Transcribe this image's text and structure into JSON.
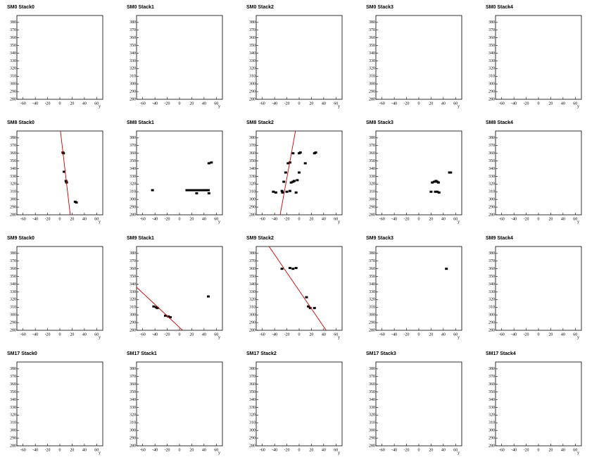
{
  "chart_data": [
    {
      "type": "scatter",
      "title": "SM0 Stack0",
      "xlabel": "y",
      "x": [],
      "values": [],
      "color": "#000000",
      "xlim": [
        -70,
        70
      ],
      "ylim": [
        280,
        389
      ],
      "xticks": [
        -60,
        -40,
        -20,
        0,
        20,
        40,
        60
      ],
      "yticks": [
        280,
        290,
        300,
        310,
        320,
        330,
        340,
        350,
        360,
        370,
        380
      ]
    },
    {
      "type": "scatter",
      "title": "SM0 Stack1",
      "xlabel": "y",
      "x": [],
      "values": [],
      "color": "#000000",
      "xlim": [
        -70,
        70
      ],
      "ylim": [
        280,
        389
      ],
      "xticks": [
        -60,
        -40,
        -20,
        0,
        20,
        40,
        60
      ],
      "yticks": [
        280,
        290,
        300,
        310,
        320,
        330,
        340,
        350,
        360,
        370,
        380
      ]
    },
    {
      "type": "scatter",
      "title": "SM0 Stack2",
      "xlabel": "y",
      "x": [],
      "values": [],
      "color": "#000000",
      "xlim": [
        -70,
        70
      ],
      "ylim": [
        280,
        389
      ],
      "xticks": [
        -60,
        -40,
        -20,
        0,
        20,
        40,
        60
      ],
      "yticks": [
        280,
        290,
        300,
        310,
        320,
        330,
        340,
        350,
        360,
        370,
        380
      ]
    },
    {
      "type": "scatter",
      "title": "SM0 Stack3",
      "xlabel": "y",
      "x": [],
      "values": [],
      "color": "#000000",
      "xlim": [
        -70,
        70
      ],
      "ylim": [
        280,
        389
      ],
      "xticks": [
        -60,
        -40,
        -20,
        0,
        20,
        40,
        60
      ],
      "yticks": [
        280,
        290,
        300,
        310,
        320,
        330,
        340,
        350,
        360,
        370,
        380
      ]
    },
    {
      "type": "scatter",
      "title": "SM0 Stack4",
      "xlabel": "y",
      "x": [],
      "values": [],
      "color": "#000000",
      "xlim": [
        -70,
        70
      ],
      "ylim": [
        280,
        389
      ],
      "xticks": [
        -60,
        -40,
        -20,
        0,
        20,
        40,
        60
      ],
      "yticks": [
        280,
        290,
        300,
        310,
        320,
        330,
        340,
        350,
        360,
        370,
        380
      ]
    },
    {
      "type": "scatter",
      "title": "SM8 Stack0",
      "xlabel": "y",
      "x": [
        5,
        6,
        7,
        10,
        11,
        25,
        27
      ],
      "values": [
        361,
        360,
        336,
        324,
        322,
        297,
        296
      ],
      "color": "#000000",
      "fit": {
        "x": [
          1,
          17
        ],
        "y": [
          389,
          280
        ],
        "color": "#cc0000"
      },
      "xlim": [
        -70,
        70
      ],
      "ylim": [
        280,
        389
      ],
      "xticks": [
        -60,
        -40,
        -20,
        0,
        20,
        40,
        60
      ],
      "yticks": [
        280,
        290,
        300,
        310,
        320,
        330,
        340,
        350,
        360,
        370,
        380
      ]
    },
    {
      "type": "scatter",
      "title": "SM8 Stack1",
      "xlabel": "y",
      "x": [
        -44,
        12,
        16,
        20,
        24,
        28,
        32,
        36,
        40,
        44,
        47,
        28,
        48,
        48,
        52
      ],
      "values": [
        312,
        312,
        312,
        312,
        312,
        312,
        312,
        312,
        312,
        312,
        312,
        308,
        308,
        347,
        348
      ],
      "color": "#000000",
      "xlim": [
        -70,
        70
      ],
      "ylim": [
        280,
        389
      ],
      "xticks": [
        -60,
        -40,
        -20,
        0,
        20,
        40,
        60
      ],
      "yticks": [
        280,
        290,
        300,
        310,
        320,
        330,
        340,
        350,
        360,
        370,
        380
      ]
    },
    {
      "type": "scatter",
      "title": "SM8 Stack2",
      "xlabel": "y",
      "x": [
        -42,
        -38,
        -28,
        -27,
        -25,
        -22,
        -20,
        -15,
        -13,
        -10,
        -8,
        -5,
        -3,
        0,
        -18,
        -15,
        -10,
        0,
        2,
        10,
        25,
        27
      ],
      "values": [
        310,
        309,
        311,
        309,
        323,
        335,
        310,
        311,
        322,
        323,
        324,
        309,
        325,
        335,
        347,
        348,
        360,
        360,
        361,
        347,
        360,
        361
      ],
      "color": "#000000",
      "fit": {
        "x": [
          -31,
          -6
        ],
        "y": [
          280,
          389
        ],
        "color": "#cc0000"
      },
      "xlim": [
        -70,
        70
      ],
      "ylim": [
        280,
        389
      ],
      "xticks": [
        -60,
        -40,
        -20,
        0,
        20,
        40,
        60
      ],
      "yticks": [
        280,
        290,
        300,
        310,
        320,
        330,
        340,
        350,
        360,
        370,
        380
      ]
    },
    {
      "type": "scatter",
      "title": "SM8 Stack3",
      "xlabel": "y",
      "x": [
        20,
        22,
        25,
        28,
        30,
        32,
        27,
        30,
        33,
        50,
        52
      ],
      "values": [
        310,
        322,
        323,
        324,
        323,
        322,
        310,
        310,
        309,
        335,
        335
      ],
      "color": "#000000",
      "xlim": [
        -70,
        70
      ],
      "ylim": [
        280,
        389
      ],
      "xticks": [
        -60,
        -40,
        -20,
        0,
        20,
        40,
        60
      ],
      "yticks": [
        280,
        290,
        300,
        310,
        320,
        330,
        340,
        350,
        360,
        370,
        380
      ]
    },
    {
      "type": "scatter",
      "title": "SM8 Stack4",
      "xlabel": "y",
      "x": [],
      "values": [],
      "color": "#000000",
      "xlim": [
        -70,
        70
      ],
      "ylim": [
        280,
        389
      ],
      "xticks": [
        -60,
        -40,
        -20,
        0,
        20,
        40,
        60
      ],
      "yticks": [
        280,
        290,
        300,
        310,
        320,
        330,
        340,
        350,
        360,
        370,
        380
      ]
    },
    {
      "type": "scatter",
      "title": "SM9 Stack0",
      "xlabel": "y",
      "x": [],
      "values": [],
      "color": "#000000",
      "xlim": [
        -70,
        70
      ],
      "ylim": [
        280,
        389
      ],
      "xticks": [
        -60,
        -40,
        -20,
        0,
        20,
        40,
        60
      ],
      "yticks": [
        280,
        290,
        300,
        310,
        320,
        330,
        340,
        350,
        360,
        370,
        380
      ]
    },
    {
      "type": "scatter",
      "title": "SM9 Stack1",
      "xlabel": "y",
      "x": [
        -42,
        -38,
        -36,
        -23,
        -18,
        -15,
        47
      ],
      "values": [
        311,
        310,
        309,
        299,
        298,
        297,
        324
      ],
      "color": "#000000",
      "fit": {
        "x": [
          -70,
          5
        ],
        "y": [
          336,
          280
        ],
        "color": "#cc0000"
      },
      "xlim": [
        -70,
        70
      ],
      "ylim": [
        280,
        389
      ],
      "xticks": [
        -60,
        -40,
        -20,
        0,
        20,
        40,
        60
      ],
      "yticks": [
        280,
        290,
        300,
        310,
        320,
        330,
        340,
        350,
        360,
        370,
        380
      ]
    },
    {
      "type": "scatter",
      "title": "SM9 Stack2",
      "xlabel": "y",
      "x": [
        -28,
        -15,
        -10,
        -5,
        12,
        15,
        18,
        25
      ],
      "values": [
        360,
        361,
        360,
        361,
        323,
        311,
        309,
        309
      ],
      "color": "#000000",
      "fit": {
        "x": [
          -49,
          44
        ],
        "y": [
          389,
          280
        ],
        "color": "#cc0000"
      },
      "xlim": [
        -70,
        70
      ],
      "ylim": [
        280,
        389
      ],
      "xticks": [
        -60,
        -40,
        -20,
        0,
        20,
        40,
        60
      ],
      "yticks": [
        280,
        290,
        300,
        310,
        320,
        330,
        340,
        350,
        360,
        370,
        380
      ]
    },
    {
      "type": "scatter",
      "title": "SM9 Stack3",
      "xlabel": "y",
      "x": [
        45
      ],
      "values": [
        360
      ],
      "color": "#000000",
      "xlim": [
        -70,
        70
      ],
      "ylim": [
        280,
        389
      ],
      "xticks": [
        -60,
        -40,
        -20,
        0,
        20,
        40,
        60
      ],
      "yticks": [
        280,
        290,
        300,
        310,
        320,
        330,
        340,
        350,
        360,
        370,
        380
      ]
    },
    {
      "type": "scatter",
      "title": "SM9 Stack4",
      "xlabel": "y",
      "x": [],
      "values": [],
      "color": "#000000",
      "xlim": [
        -70,
        70
      ],
      "ylim": [
        280,
        389
      ],
      "xticks": [
        -60,
        -40,
        -20,
        0,
        20,
        40,
        60
      ],
      "yticks": [
        280,
        290,
        300,
        310,
        320,
        330,
        340,
        350,
        360,
        370,
        380
      ]
    },
    {
      "type": "scatter",
      "title": "SM17 Stack0",
      "xlabel": "y",
      "x": [],
      "values": [],
      "color": "#000000",
      "xlim": [
        -70,
        70
      ],
      "ylim": [
        280,
        389
      ],
      "xticks": [
        -60,
        -40,
        -20,
        0,
        20,
        40,
        60
      ],
      "yticks": [
        280,
        290,
        300,
        310,
        320,
        330,
        340,
        350,
        360,
        370,
        380
      ]
    },
    {
      "type": "scatter",
      "title": "SM17 Stack1",
      "xlabel": "y",
      "x": [],
      "values": [],
      "color": "#000000",
      "xlim": [
        -70,
        70
      ],
      "ylim": [
        280,
        389
      ],
      "xticks": [
        -60,
        -40,
        -20,
        0,
        20,
        40,
        60
      ],
      "yticks": [
        280,
        290,
        300,
        310,
        320,
        330,
        340,
        350,
        360,
        370,
        380
      ]
    },
    {
      "type": "scatter",
      "title": "SM17 Stack2",
      "xlabel": "y",
      "x": [],
      "values": [],
      "color": "#000000",
      "xlim": [
        -70,
        70
      ],
      "ylim": [
        280,
        389
      ],
      "xticks": [
        -60,
        -40,
        -20,
        0,
        20,
        40,
        60
      ],
      "yticks": [
        280,
        290,
        300,
        310,
        320,
        330,
        340,
        350,
        360,
        370,
        380
      ]
    },
    {
      "type": "scatter",
      "title": "SM17 Stack3",
      "xlabel": "y",
      "x": [],
      "values": [],
      "color": "#000000",
      "xlim": [
        -70,
        70
      ],
      "ylim": [
        280,
        389
      ],
      "xticks": [
        -60,
        -40,
        -20,
        0,
        20,
        40,
        60
      ],
      "yticks": [
        280,
        290,
        300,
        310,
        320,
        330,
        340,
        350,
        360,
        370,
        380
      ]
    },
    {
      "type": "scatter",
      "title": "SM17 Stack4",
      "xlabel": "y",
      "x": [],
      "values": [],
      "color": "#000000",
      "xlim": [
        -70,
        70
      ],
      "ylim": [
        280,
        389
      ],
      "xticks": [
        -60,
        -40,
        -20,
        0,
        20,
        40,
        60
      ],
      "yticks": [
        280,
        290,
        300,
        310,
        320,
        330,
        340,
        350,
        360,
        370,
        380
      ]
    }
  ]
}
